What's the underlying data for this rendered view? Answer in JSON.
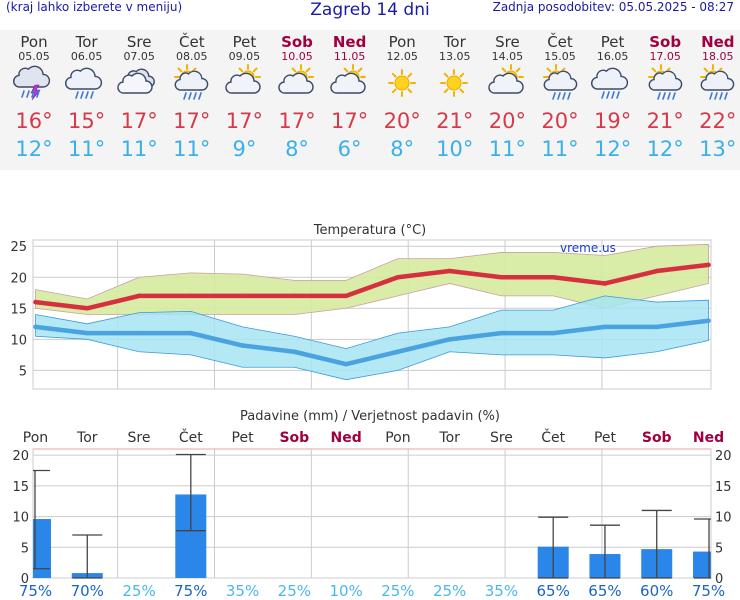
{
  "header": {
    "note": "(kraj lahko izberete v meniju)",
    "title": "Zagreb 14 dni",
    "updated": "Zadnja posodobitev: 05.05.2025 - 08:27"
  },
  "days": [
    {
      "name": "Pon",
      "date": "05.05",
      "icon": "thunderstorm-icon",
      "max": "16°",
      "min": "12°",
      "weekend": false
    },
    {
      "name": "Tor",
      "date": "06.05",
      "icon": "cloud-rain-icon",
      "max": "15°",
      "min": "11°",
      "weekend": false
    },
    {
      "name": "Sre",
      "date": "07.05",
      "icon": "cloudy-icon",
      "max": "17°",
      "min": "11°",
      "weekend": false
    },
    {
      "name": "Čet",
      "date": "08.05",
      "icon": "sun-cloud-rain-icon",
      "max": "17°",
      "min": "11°",
      "weekend": false
    },
    {
      "name": "Pet",
      "date": "09.05",
      "icon": "partly-cloudy-icon",
      "max": "17°",
      "min": "9°",
      "weekend": false
    },
    {
      "name": "Sob",
      "date": "10.05",
      "icon": "partly-cloudy-icon",
      "max": "17°",
      "min": "8°",
      "weekend": true
    },
    {
      "name": "Ned",
      "date": "11.05",
      "icon": "partly-cloudy-icon",
      "max": "17°",
      "min": "6°",
      "weekend": true
    },
    {
      "name": "Pon",
      "date": "12.05",
      "icon": "sun-icon",
      "max": "20°",
      "min": "8°",
      "weekend": false
    },
    {
      "name": "Tor",
      "date": "13.05",
      "icon": "sun-icon",
      "max": "21°",
      "min": "10°",
      "weekend": false
    },
    {
      "name": "Sre",
      "date": "14.05",
      "icon": "partly-cloudy-icon",
      "max": "20°",
      "min": "11°",
      "weekend": false
    },
    {
      "name": "Čet",
      "date": "15.05",
      "icon": "sun-cloud-rain-icon",
      "max": "20°",
      "min": "11°",
      "weekend": false
    },
    {
      "name": "Pet",
      "date": "16.05",
      "icon": "cloud-rain-icon",
      "max": "19°",
      "min": "12°",
      "weekend": false
    },
    {
      "name": "Sob",
      "date": "17.05",
      "icon": "sun-cloud-rain-icon",
      "max": "21°",
      "min": "12°",
      "weekend": true
    },
    {
      "name": "Ned",
      "date": "18.05",
      "icon": "sun-cloud-rain-icon",
      "max": "22°",
      "min": "13°",
      "weekend": true
    }
  ],
  "colors": {
    "max_line": "#d63040",
    "min_line": "#4aa3e0",
    "max_band": "#d6eb9e",
    "min_band": "#a6e4f2",
    "precip_bar": "#2a86e8",
    "grid": "#cccccc",
    "weekend": "#a00040",
    "prob_low": "#4ab8ee",
    "prob_high": "#1a64c8"
  },
  "chart_data": [
    {
      "type": "line",
      "title": "Temperatura (°C)",
      "watermark": "vreme.us",
      "x": [
        0,
        1,
        2,
        3,
        4,
        5,
        6,
        7,
        8,
        9,
        10,
        11,
        12,
        13
      ],
      "ylim": [
        2,
        26
      ],
      "yticks": [
        5,
        10,
        15,
        20,
        25
      ],
      "series": [
        {
          "values": [
            16,
            15,
            17,
            17,
            17,
            17,
            17,
            20,
            21,
            20,
            20,
            19,
            21,
            22
          ]
        },
        {
          "values": [
            12,
            11,
            11,
            11,
            9,
            8,
            6,
            8,
            10,
            11,
            11,
            12,
            12,
            13
          ]
        }
      ],
      "max_band": {
        "low": [
          15,
          14,
          14,
          14,
          14,
          14,
          15,
          17,
          19,
          17,
          17,
          15,
          17,
          19
        ],
        "high": [
          18,
          16.5,
          20,
          20.7,
          20.5,
          19.5,
          19.5,
          23,
          23,
          24,
          24,
          23.5,
          25,
          25.3
        ]
      },
      "min_band": {
        "low": [
          10.5,
          10,
          8,
          7.5,
          5.5,
          5.5,
          3.5,
          5,
          8,
          7.5,
          7.5,
          7,
          8,
          9.8
        ],
        "high": [
          14,
          12.5,
          14.3,
          14.5,
          12,
          10.5,
          8.5,
          11,
          12,
          14.7,
          14.7,
          17,
          16,
          16.3
        ]
      }
    },
    {
      "type": "bar",
      "title": "Padavine (mm) / Verjetnost padavin (%)",
      "categories": [
        "Pon",
        "Tor",
        "Sre",
        "Čet",
        "Pet",
        "Sob",
        "Ned",
        "Pon",
        "Tor",
        "Sre",
        "Čet",
        "Pet",
        "Sob",
        "Ned"
      ],
      "ylim": [
        0,
        21
      ],
      "yticks": [
        0,
        5,
        10,
        15,
        20
      ],
      "values": [
        9.6,
        0.8,
        0,
        13.6,
        0,
        0,
        0,
        0,
        0,
        0,
        5.1,
        3.9,
        4.7,
        4.3
      ],
      "err_low": [
        1.5,
        0,
        0,
        7.7,
        0,
        0,
        0,
        0,
        0,
        0,
        0,
        0,
        0,
        0
      ],
      "err_high": [
        17.5,
        7,
        0,
        20.1,
        0,
        0,
        0,
        0,
        0,
        0,
        9.9,
        8.6,
        11,
        9.6
      ],
      "probability": [
        "75%",
        "70%",
        "25%",
        "75%",
        "35%",
        "25%",
        "10%",
        "25%",
        "25%",
        "35%",
        "65%",
        "65%",
        "60%",
        "75%"
      ],
      "probability_values": [
        75,
        70,
        25,
        75,
        35,
        25,
        10,
        25,
        25,
        35,
        65,
        65,
        60,
        75
      ]
    }
  ]
}
